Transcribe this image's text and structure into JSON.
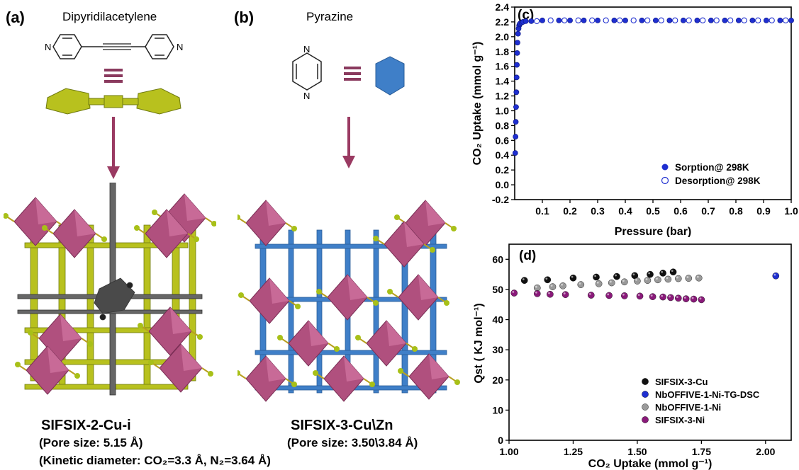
{
  "panels": {
    "a": {
      "label": "(a)",
      "molecule": "Dipyridilacetylene",
      "name": "SIFSIX-2-Cu-i",
      "pore": "(Pore size: 5.15 Å)",
      "kinetic": "(Kinetic diameter: CO₂=3.3 Å, N₂=3.64 Å)"
    },
    "b": {
      "label": "(b)",
      "molecule": "Pyrazine",
      "name": "SIFSIX-3-Cu\\Zn",
      "pore": "(Pore size: 3.50\\3.84 Å)"
    }
  },
  "colors": {
    "octahedra": "#b0507e",
    "linker_a": "#b8c11e",
    "linker_b": "#3f7fc8",
    "guest": "#555555",
    "arrow": "#9a3a62"
  },
  "chart_data": [
    {
      "type": "scatter",
      "panel_label": "(c)",
      "xlabel": "Pressure (bar)",
      "ylabel": "CO₂ Uptake (mmol g⁻¹)",
      "xlim": [
        0,
        1.0
      ],
      "ylim": [
        -0.2,
        2.4
      ],
      "xticks": [
        0.1,
        0.2,
        0.3,
        0.4,
        0.5,
        0.6,
        0.7,
        0.8,
        0.9,
        1.0
      ],
      "yticks": [
        -0.2,
        0.0,
        0.2,
        0.4,
        0.6,
        0.8,
        1.0,
        1.2,
        1.4,
        1.6,
        1.8,
        2.0,
        2.2,
        2.4
      ],
      "xtick_labels": [
        "0.1",
        "0.2",
        "0.3",
        "0.4",
        "0.5",
        "0.6",
        "0.7",
        "0.8",
        "0.9",
        "1.0"
      ],
      "ytick_labels": [
        "-0.2",
        "0.0",
        "0.2",
        "0.4",
        "0.6",
        "0.8",
        "1.0",
        "1.2",
        "1.4",
        "1.6",
        "1.8",
        "2.0",
        "2.2",
        "2.4"
      ],
      "legend_position": "bottom-right",
      "series": [
        {
          "name": "Sorption@ 298K",
          "color": "#1f2fd0",
          "filled": true,
          "x": [
            0.002,
            0.003,
            0.004,
            0.005,
            0.006,
            0.007,
            0.008,
            0.009,
            0.01,
            0.012,
            0.014,
            0.016,
            0.018,
            0.02,
            0.025,
            0.03,
            0.04,
            0.06,
            0.1,
            0.16,
            0.2,
            0.25,
            0.3,
            0.36,
            0.4,
            0.46,
            0.51,
            0.56,
            0.61,
            0.66,
            0.71,
            0.76,
            0.81,
            0.86,
            0.91,
            0.96,
            1.0
          ],
          "y": [
            0.43,
            0.65,
            0.85,
            1.05,
            1.25,
            1.45,
            1.62,
            1.78,
            1.92,
            2.04,
            2.11,
            2.15,
            2.17,
            2.18,
            2.19,
            2.2,
            2.21,
            2.21,
            2.22,
            2.22,
            2.22,
            2.22,
            2.22,
            2.22,
            2.22,
            2.22,
            2.22,
            2.22,
            2.22,
            2.22,
            2.22,
            2.22,
            2.22,
            2.22,
            2.22,
            2.22,
            2.22
          ]
        },
        {
          "name": "Desorption@ 298K",
          "color": "#1f2fd0",
          "filled": false,
          "x": [
            0.98,
            0.93,
            0.88,
            0.83,
            0.78,
            0.73,
            0.68,
            0.63,
            0.58,
            0.53,
            0.48,
            0.43,
            0.38,
            0.33,
            0.28,
            0.23,
            0.18,
            0.13,
            0.08
          ],
          "y": [
            2.22,
            2.22,
            2.22,
            2.22,
            2.22,
            2.22,
            2.22,
            2.22,
            2.22,
            2.22,
            2.22,
            2.22,
            2.22,
            2.22,
            2.22,
            2.22,
            2.22,
            2.22,
            2.21
          ]
        }
      ]
    },
    {
      "type": "scatter",
      "panel_label": "(d)",
      "xlabel": "CO₂ Uptake (mmol g⁻¹)",
      "ylabel": "Qst ( KJ mol⁻¹)",
      "xlim": [
        1.0,
        2.1
      ],
      "ylim": [
        0,
        65
      ],
      "xticks": [
        1.0,
        1.25,
        1.5,
        1.75,
        2.0
      ],
      "yticks": [
        0,
        10,
        20,
        30,
        40,
        50,
        60
      ],
      "xtick_labels": [
        "1.00",
        "1.25",
        "1.50",
        "1.75",
        "2.00"
      ],
      "ytick_labels": [
        "0",
        "10",
        "20",
        "30",
        "40",
        "50",
        "60"
      ],
      "legend_position": "bottom-right",
      "series": [
        {
          "name": "SIFSIX-3-Cu",
          "color": "#111111",
          "x": [
            1.06,
            1.15,
            1.25,
            1.34,
            1.42,
            1.49,
            1.55,
            1.6,
            1.64
          ],
          "y": [
            53.0,
            53.2,
            53.8,
            54.1,
            54.3,
            54.6,
            55.0,
            55.4,
            55.8
          ]
        },
        {
          "name": "NbOFFIVE-1-Ni-TG-DSC",
          "color": "#1f2fd0",
          "x": [
            2.04
          ],
          "y": [
            54.5
          ]
        },
        {
          "name": "NbOFFIVE-1-Ni",
          "color": "#9a9a9a",
          "x": [
            1.11,
            1.17,
            1.21,
            1.28,
            1.35,
            1.4,
            1.45,
            1.5,
            1.54,
            1.58,
            1.62,
            1.66,
            1.7,
            1.74
          ],
          "y": [
            50.5,
            50.9,
            51.2,
            51.6,
            51.9,
            52.2,
            52.5,
            52.8,
            53.0,
            53.2,
            53.4,
            53.6,
            53.7,
            53.8
          ]
        },
        {
          "name": "SIFSIX-3-Ni",
          "color": "#8a1a7a",
          "x": [
            1.02,
            1.11,
            1.16,
            1.22,
            1.32,
            1.39,
            1.45,
            1.51,
            1.56,
            1.6,
            1.63,
            1.66,
            1.69,
            1.72,
            1.75
          ],
          "y": [
            48.8,
            48.6,
            48.4,
            48.3,
            48.1,
            48.0,
            47.9,
            47.8,
            47.6,
            47.5,
            47.3,
            47.1,
            46.9,
            46.8,
            46.6
          ]
        }
      ]
    }
  ]
}
